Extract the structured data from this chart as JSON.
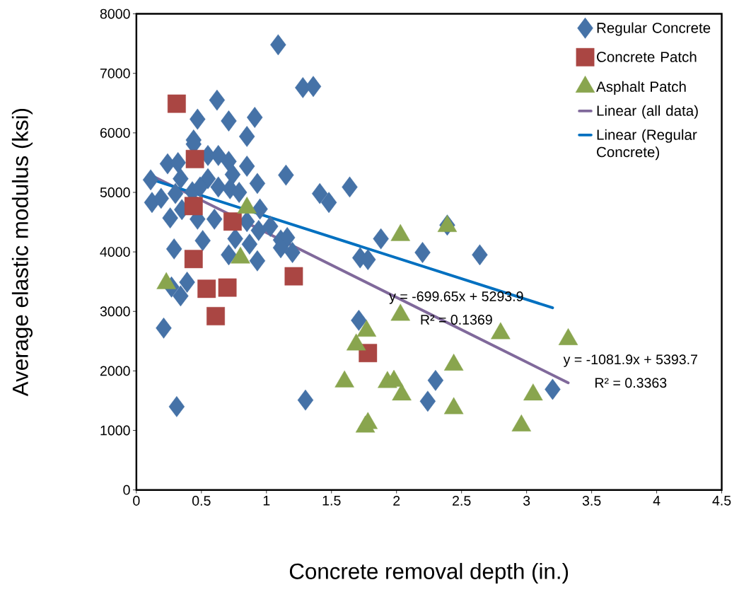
{
  "chart_data": {
    "type": "scatter",
    "xlabel": "Concrete removal depth (in.)",
    "ylabel": "Average elastic modulus (ksi)",
    "xlim": [
      0,
      4.5
    ],
    "xticks": [
      0,
      0.5,
      1,
      1.5,
      2,
      2.5,
      3,
      3.5,
      4,
      4.5
    ],
    "ylim": [
      0,
      8000
    ],
    "yticks": [
      0,
      1000,
      2000,
      3000,
      4000,
      5000,
      6000,
      7000,
      8000
    ],
    "legend": "top right",
    "annotations": [
      "y = -699.65x + 5293.9",
      "R² = 0.1369",
      "y = -1081.9x + 5393.7",
      "R² = 0.3363"
    ],
    "series": [
      {
        "name": "Regular Concrete",
        "marker": "diamond",
        "color": "#4572a7",
        "x": [
          1.09,
          1.28,
          1.36,
          0.62,
          0.47,
          0.71,
          0.91,
          0.85,
          0.44,
          0.44,
          0.24,
          0.32,
          0.55,
          0.63,
          0.71,
          0.85,
          0.74,
          0.34,
          0.55,
          0.11,
          0.93,
          1.15,
          1.64,
          1.41,
          1.48,
          0.12,
          0.19,
          0.3,
          0.43,
          0.49,
          0.63,
          0.72,
          0.79,
          0.26,
          0.35,
          0.47,
          0.6,
          0.95,
          0.85,
          0.94,
          1.03,
          1.11,
          1.16,
          1.88,
          0.76,
          0.87,
          0.51,
          0.29,
          1.11,
          1.2,
          1.72,
          1.78,
          0.71,
          0.93,
          2.2,
          2.64,
          2.39,
          0.39,
          0.27,
          0.34,
          0.21,
          0.31,
          1.3,
          1.71,
          2.3,
          2.24,
          3.2
        ],
        "values": [
          7480,
          6760,
          6780,
          6550,
          6230,
          6200,
          6260,
          5940,
          5880,
          5810,
          5480,
          5500,
          5620,
          5620,
          5520,
          5440,
          5300,
          5230,
          5230,
          5210,
          5150,
          5290,
          5090,
          4980,
          4830,
          4830,
          4900,
          4980,
          5010,
          5090,
          5090,
          5060,
          5000,
          4570,
          4710,
          4550,
          4550,
          4720,
          4510,
          4360,
          4430,
          4200,
          4240,
          4220,
          4220,
          4130,
          4190,
          4050,
          4070,
          3990,
          3900,
          3870,
          3950,
          3850,
          3990,
          3950,
          4450,
          3490,
          3410,
          3260,
          2720,
          1400,
          1510,
          2850,
          1840,
          1490,
          1690
        ]
      },
      {
        "name": "Concrete Patch",
        "marker": "square",
        "color": "#aa4643",
        "x": [
          0.31,
          0.45,
          0.44,
          0.74,
          0.44,
          0.54,
          0.7,
          0.61,
          1.21,
          1.78
        ],
        "values": [
          6490,
          5560,
          4770,
          4510,
          3880,
          3380,
          3400,
          2920,
          3590,
          2300
        ]
      },
      {
        "name": "Asphalt Patch",
        "marker": "triangle",
        "color": "#89a54e",
        "x": [
          0.85,
          2.03,
          0.8,
          2.39,
          0.23,
          2.03,
          1.77,
          1.69,
          2.8,
          3.32,
          2.44,
          1.6,
          1.93,
          1.98,
          2.04,
          2.44,
          3.05,
          2.96,
          1.76,
          1.78
        ],
        "values": [
          4740,
          4280,
          3900,
          4430,
          3470,
          2940,
          2670,
          2440,
          2630,
          2530,
          2100,
          1820,
          1810,
          1830,
          1600,
          1370,
          1600,
          1080,
          1060,
          1120
        ]
      },
      {
        "name": "Linear (all data)",
        "type": "line",
        "marker": "none",
        "color": "#80699b",
        "x": [
          0.11,
          3.32
        ],
        "values": [
          5290,
          1800
        ]
      },
      {
        "name": "Linear (Regular Concrete)",
        "type": "line",
        "marker": "none",
        "color": "#0070c0",
        "x": [
          0.11,
          3.2
        ],
        "values": [
          5220,
          3060
        ]
      }
    ]
  }
}
